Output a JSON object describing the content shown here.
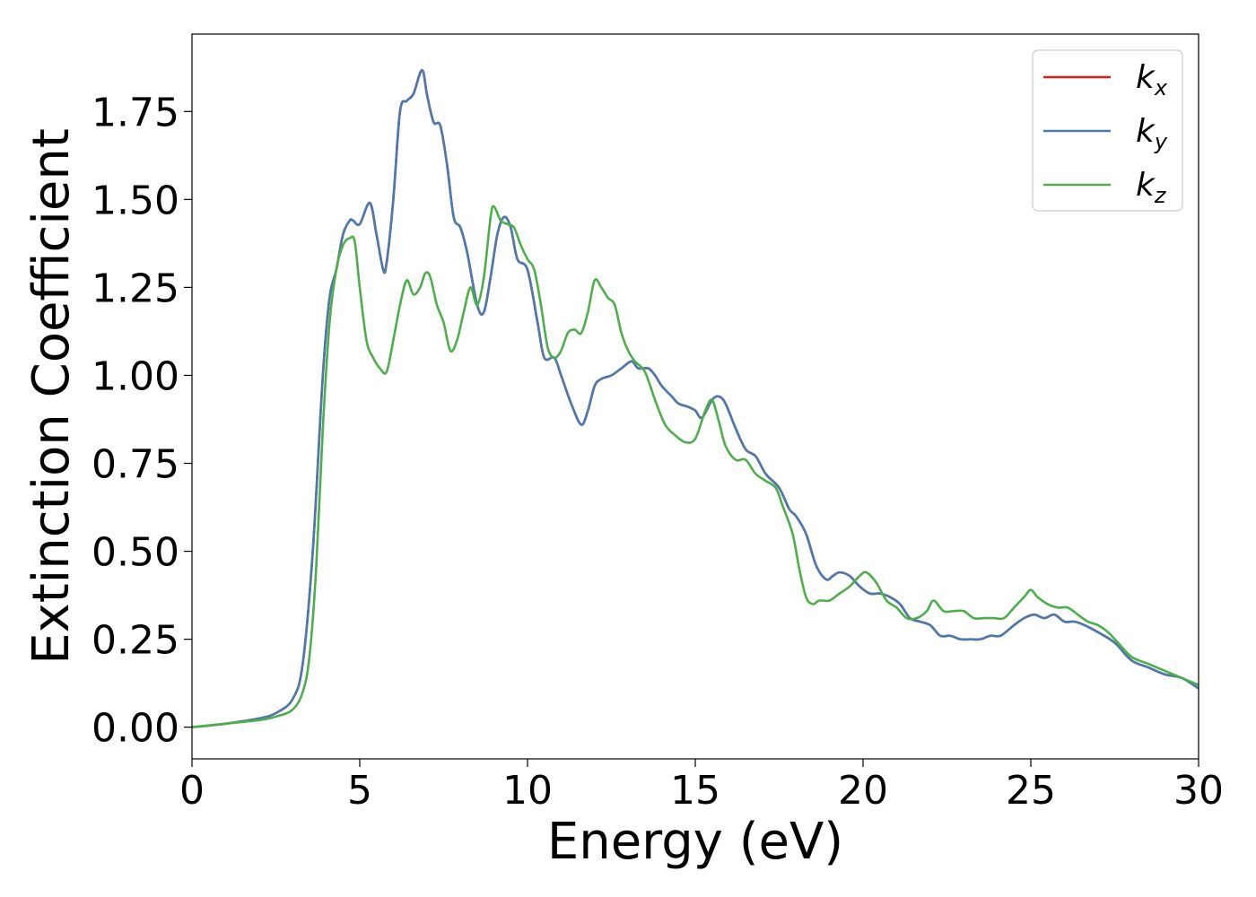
{
  "chart_data": {
    "type": "line",
    "title": "",
    "xlabel": "Energy (eV)",
    "ylabel": "Extinction Coefficient",
    "xlim": [
      0,
      30
    ],
    "ylim": [
      -0.09,
      1.97
    ],
    "xticks": [
      0,
      5,
      10,
      15,
      20,
      25,
      30
    ],
    "xtick_labels": [
      "0",
      "5",
      "10",
      "15",
      "20",
      "25",
      "30"
    ],
    "yticks": [
      0.0,
      0.25,
      0.5,
      0.75,
      1.0,
      1.25,
      1.5,
      1.75
    ],
    "ytick_labels": [
      "0.00",
      "0.25",
      "0.50",
      "0.75",
      "1.00",
      "1.25",
      "1.50",
      "1.75"
    ],
    "grid": false,
    "legend_position": "top-right",
    "series": [
      {
        "name": "k_x",
        "legend_base": "k",
        "legend_sub": "x",
        "color": "#e41a1c",
        "x": [
          0,
          1,
          2,
          2.5,
          3,
          3.3,
          3.6,
          3.9,
          4.1,
          4.3,
          4.5,
          4.7,
          4.8,
          5.0,
          5.3,
          5.5,
          5.7,
          5.8,
          6.0,
          6.2,
          6.4,
          6.6,
          6.8,
          6.9,
          7.0,
          7.2,
          7.4,
          7.6,
          7.8,
          8.0,
          8.2,
          8.5,
          8.7,
          8.9,
          9.1,
          9.3,
          9.5,
          9.7,
          10.0,
          10.3,
          10.5,
          10.8,
          11.0,
          11.3,
          11.6,
          11.8,
          12.0,
          12.2,
          12.5,
          12.8,
          13.1,
          13.3,
          13.6,
          13.8,
          14.0,
          14.3,
          14.5,
          14.8,
          15.0,
          15.2,
          15.5,
          15.7,
          15.9,
          16.2,
          16.5,
          16.8,
          17.1,
          17.5,
          17.8,
          18.0,
          18.3,
          18.6,
          18.9,
          19.1,
          19.3,
          19.6,
          19.9,
          20.2,
          20.5,
          20.8,
          21.1,
          21.4,
          21.7,
          22.0,
          22.3,
          22.6,
          22.9,
          23.2,
          23.5,
          23.8,
          24.1,
          24.5,
          24.8,
          25.1,
          25.4,
          25.7,
          26.0,
          26.3,
          26.6,
          27.0,
          27.5,
          28.0,
          28.5,
          29.0,
          29.5,
          30.0
        ],
        "y": [
          0.0,
          0.01,
          0.025,
          0.04,
          0.08,
          0.18,
          0.5,
          1.0,
          1.22,
          1.3,
          1.4,
          1.44,
          1.44,
          1.43,
          1.49,
          1.4,
          1.3,
          1.32,
          1.5,
          1.75,
          1.78,
          1.8,
          1.86,
          1.86,
          1.8,
          1.72,
          1.71,
          1.6,
          1.45,
          1.42,
          1.35,
          1.2,
          1.18,
          1.28,
          1.4,
          1.45,
          1.42,
          1.33,
          1.3,
          1.15,
          1.05,
          1.05,
          1.0,
          0.92,
          0.86,
          0.9,
          0.97,
          0.99,
          1.0,
          1.02,
          1.04,
          1.02,
          1.02,
          1.0,
          0.97,
          0.94,
          0.92,
          0.91,
          0.9,
          0.88,
          0.93,
          0.94,
          0.92,
          0.85,
          0.79,
          0.77,
          0.72,
          0.68,
          0.62,
          0.6,
          0.55,
          0.46,
          0.42,
          0.43,
          0.44,
          0.43,
          0.4,
          0.38,
          0.38,
          0.37,
          0.35,
          0.31,
          0.3,
          0.29,
          0.26,
          0.26,
          0.25,
          0.25,
          0.25,
          0.26,
          0.26,
          0.29,
          0.31,
          0.32,
          0.31,
          0.32,
          0.3,
          0.3,
          0.29,
          0.27,
          0.24,
          0.19,
          0.17,
          0.15,
          0.14,
          0.11
        ]
      },
      {
        "name": "k_y",
        "legend_base": "k",
        "legend_sub": "y",
        "color": "#4a7bb0",
        "x": [
          0,
          1,
          2,
          2.5,
          3,
          3.3,
          3.6,
          3.9,
          4.1,
          4.3,
          4.5,
          4.7,
          4.8,
          5.0,
          5.3,
          5.5,
          5.7,
          5.8,
          6.0,
          6.2,
          6.4,
          6.6,
          6.8,
          6.9,
          7.0,
          7.2,
          7.4,
          7.6,
          7.8,
          8.0,
          8.2,
          8.5,
          8.7,
          8.9,
          9.1,
          9.3,
          9.5,
          9.7,
          10.0,
          10.3,
          10.5,
          10.8,
          11.0,
          11.3,
          11.6,
          11.8,
          12.0,
          12.2,
          12.5,
          12.8,
          13.1,
          13.3,
          13.6,
          13.8,
          14.0,
          14.3,
          14.5,
          14.8,
          15.0,
          15.2,
          15.5,
          15.7,
          15.9,
          16.2,
          16.5,
          16.8,
          17.1,
          17.5,
          17.8,
          18.0,
          18.3,
          18.6,
          18.9,
          19.1,
          19.3,
          19.6,
          19.9,
          20.2,
          20.5,
          20.8,
          21.1,
          21.4,
          21.7,
          22.0,
          22.3,
          22.6,
          22.9,
          23.2,
          23.5,
          23.8,
          24.1,
          24.5,
          24.8,
          25.1,
          25.4,
          25.7,
          26.0,
          26.3,
          26.6,
          27.0,
          27.5,
          28.0,
          28.5,
          29.0,
          29.5,
          30.0
        ],
        "y": [
          0.0,
          0.01,
          0.025,
          0.04,
          0.08,
          0.18,
          0.5,
          1.0,
          1.22,
          1.3,
          1.4,
          1.44,
          1.44,
          1.43,
          1.49,
          1.4,
          1.3,
          1.32,
          1.5,
          1.75,
          1.78,
          1.8,
          1.86,
          1.86,
          1.8,
          1.72,
          1.71,
          1.6,
          1.45,
          1.42,
          1.35,
          1.2,
          1.18,
          1.28,
          1.4,
          1.45,
          1.42,
          1.33,
          1.3,
          1.15,
          1.05,
          1.05,
          1.0,
          0.92,
          0.86,
          0.9,
          0.97,
          0.99,
          1.0,
          1.02,
          1.04,
          1.02,
          1.02,
          1.0,
          0.97,
          0.94,
          0.92,
          0.91,
          0.9,
          0.88,
          0.93,
          0.94,
          0.92,
          0.85,
          0.79,
          0.77,
          0.72,
          0.68,
          0.62,
          0.6,
          0.55,
          0.46,
          0.42,
          0.43,
          0.44,
          0.43,
          0.4,
          0.38,
          0.38,
          0.37,
          0.35,
          0.31,
          0.3,
          0.29,
          0.26,
          0.26,
          0.25,
          0.25,
          0.25,
          0.26,
          0.26,
          0.29,
          0.31,
          0.32,
          0.31,
          0.32,
          0.3,
          0.3,
          0.29,
          0.27,
          0.24,
          0.19,
          0.17,
          0.15,
          0.14,
          0.11
        ]
      },
      {
        "name": "k_z",
        "legend_base": "k",
        "legend_sub": "z",
        "color": "#4daf4a",
        "x": [
          0,
          1,
          2,
          2.5,
          3,
          3.3,
          3.5,
          3.7,
          3.9,
          4.1,
          4.3,
          4.5,
          4.7,
          4.85,
          5.0,
          5.2,
          5.4,
          5.6,
          5.8,
          6.0,
          6.2,
          6.4,
          6.6,
          6.8,
          6.95,
          7.1,
          7.3,
          7.5,
          7.7,
          7.9,
          8.1,
          8.3,
          8.5,
          8.7,
          8.9,
          9.0,
          9.2,
          9.4,
          9.6,
          9.8,
          10.0,
          10.2,
          10.4,
          10.6,
          10.8,
          11.0,
          11.2,
          11.4,
          11.6,
          11.8,
          12.0,
          12.2,
          12.4,
          12.6,
          12.8,
          13.0,
          13.2,
          13.5,
          13.8,
          14.1,
          14.4,
          14.7,
          15.0,
          15.3,
          15.5,
          15.7,
          15.9,
          16.2,
          16.5,
          16.8,
          17.1,
          17.4,
          17.6,
          17.9,
          18.1,
          18.3,
          18.5,
          18.7,
          19.0,
          19.3,
          19.6,
          19.9,
          20.1,
          20.4,
          20.7,
          21.0,
          21.3,
          21.6,
          21.9,
          22.1,
          22.4,
          22.7,
          23.0,
          23.3,
          23.6,
          23.9,
          24.2,
          24.5,
          24.8,
          25.0,
          25.2,
          25.5,
          25.8,
          26.1,
          26.4,
          26.7,
          27.0,
          27.3,
          27.6,
          28.0,
          28.5,
          29.0,
          29.5,
          30.0
        ],
        "y": [
          0.0,
          0.01,
          0.02,
          0.03,
          0.05,
          0.1,
          0.2,
          0.45,
          0.85,
          1.15,
          1.3,
          1.37,
          1.39,
          1.38,
          1.25,
          1.1,
          1.05,
          1.02,
          1.01,
          1.1,
          1.2,
          1.27,
          1.23,
          1.25,
          1.29,
          1.28,
          1.2,
          1.15,
          1.07,
          1.1,
          1.18,
          1.25,
          1.2,
          1.28,
          1.45,
          1.48,
          1.44,
          1.43,
          1.42,
          1.37,
          1.33,
          1.3,
          1.2,
          1.08,
          1.05,
          1.07,
          1.12,
          1.13,
          1.12,
          1.18,
          1.27,
          1.25,
          1.22,
          1.2,
          1.12,
          1.07,
          1.04,
          1.01,
          0.93,
          0.86,
          0.83,
          0.81,
          0.82,
          0.9,
          0.93,
          0.87,
          0.8,
          0.76,
          0.76,
          0.72,
          0.7,
          0.68,
          0.63,
          0.55,
          0.45,
          0.37,
          0.35,
          0.36,
          0.36,
          0.38,
          0.4,
          0.43,
          0.44,
          0.41,
          0.36,
          0.34,
          0.31,
          0.31,
          0.33,
          0.36,
          0.33,
          0.33,
          0.33,
          0.31,
          0.31,
          0.31,
          0.31,
          0.34,
          0.37,
          0.39,
          0.37,
          0.35,
          0.34,
          0.34,
          0.32,
          0.3,
          0.29,
          0.27,
          0.24,
          0.2,
          0.18,
          0.16,
          0.14,
          0.12
        ]
      }
    ]
  }
}
